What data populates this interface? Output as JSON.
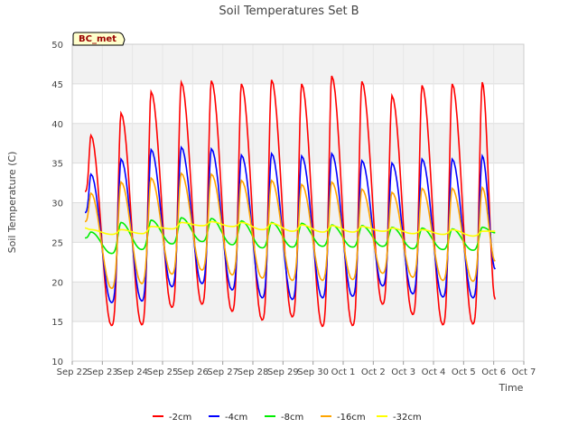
{
  "chart_data": {
    "type": "line",
    "title": "Soil Temperatures Set B",
    "xlabel": "Time",
    "ylabel": "Soil Temperature (C)",
    "ylim": [
      10,
      50
    ],
    "yticks": [
      10,
      15,
      20,
      25,
      30,
      35,
      40,
      45,
      50
    ],
    "xlim": [
      "2023-09-22",
      "2023-10-07"
    ],
    "xtick_labels": [
      "Sep 22",
      "Sep 23",
      "Sep 24",
      "Sep 25",
      "Sep 26",
      "Sep 27",
      "Sep 28",
      "Sep 29",
      "Sep 30",
      "Oct 1",
      "Oct 2",
      "Oct 3",
      "Oct 4",
      "Oct 5",
      "Oct 6",
      "Oct 7"
    ],
    "grid": true,
    "background_bands": true,
    "legend_position": "bottom-center",
    "annotation": "BC_met",
    "series": [
      {
        "name": "-2cm",
        "color": "#ff0000",
        "daily_min": [
          14.9,
          14.5,
          14.6,
          16.8,
          17.2,
          16.3,
          15.2,
          15.6,
          14.4,
          14.5,
          17.2,
          15.9,
          14.6,
          14.7,
          17.8
        ],
        "daily_max": [
          38.5,
          41.3,
          44.0,
          45.2,
          45.4,
          45.0,
          45.5,
          45.0,
          46.0,
          45.3,
          43.5,
          44.8,
          45.0,
          45.2,
          null
        ]
      },
      {
        "name": "-4cm",
        "color": "#0000ff",
        "daily_min": [
          17.5,
          17.4,
          17.6,
          19.4,
          19.8,
          19.0,
          18.0,
          17.8,
          18.0,
          18.2,
          19.5,
          18.5,
          18.1,
          18.0,
          21.2
        ],
        "daily_max": [
          33.6,
          35.5,
          36.7,
          37.0,
          36.8,
          36.0,
          36.2,
          35.9,
          36.2,
          35.3,
          35.0,
          35.5,
          35.5,
          35.9,
          null
        ]
      },
      {
        "name": "-8cm",
        "color": "#00ee00",
        "daily_min": [
          23.8,
          23.6,
          24.1,
          24.8,
          25.1,
          24.7,
          24.3,
          24.4,
          24.5,
          24.4,
          24.5,
          24.2,
          24.1,
          24.0,
          25.8
        ],
        "daily_max": [
          26.3,
          27.5,
          27.8,
          28.1,
          28.0,
          27.7,
          27.5,
          27.4,
          27.2,
          27.1,
          26.9,
          26.8,
          26.7,
          26.9,
          null
        ]
      },
      {
        "name": "-16cm",
        "color": "#ffa500",
        "daily_min": [
          19.3,
          19.2,
          19.8,
          21.0,
          21.5,
          20.9,
          20.5,
          20.2,
          20.2,
          20.3,
          21.1,
          20.6,
          20.2,
          20.1,
          22.2
        ],
        "daily_max": [
          31.2,
          32.6,
          33.1,
          33.7,
          33.6,
          32.8,
          32.8,
          32.3,
          32.6,
          31.7,
          31.3,
          31.8,
          31.8,
          31.9,
          null
        ]
      },
      {
        "name": "-32cm",
        "color": "#ffff00",
        "start": 26.8,
        "daily_min": [
          26.1,
          26.0,
          26.1,
          26.7,
          27.1,
          27.0,
          26.6,
          26.4,
          26.3,
          26.3,
          26.4,
          26.1,
          26.0,
          25.8,
          26.0
        ],
        "daily_max": [
          26.6,
          26.6,
          27.0,
          27.5,
          27.6,
          27.5,
          27.4,
          27.2,
          27.1,
          27.0,
          26.8,
          26.6,
          26.6,
          26.4,
          null
        ]
      }
    ]
  }
}
